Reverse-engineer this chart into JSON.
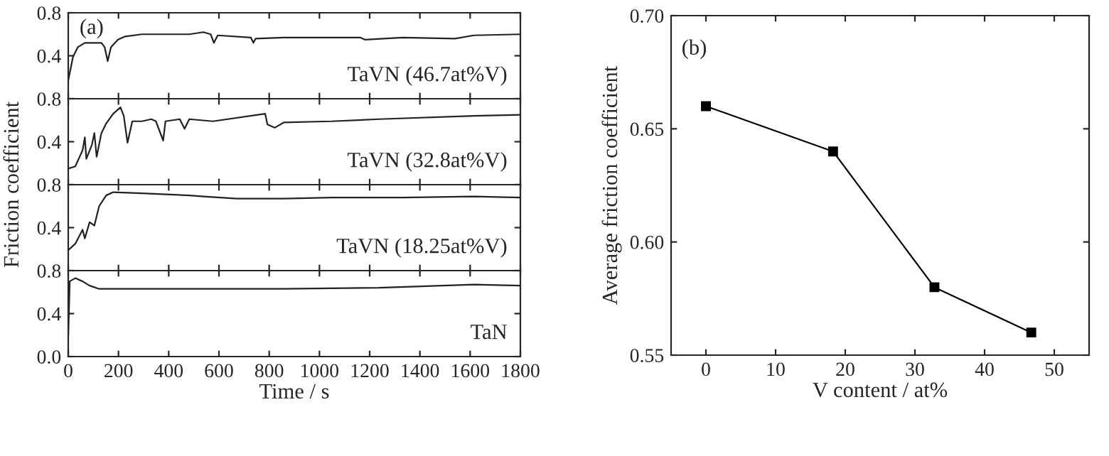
{
  "chart_data": [
    {
      "type": "line",
      "annotations": [
        "(a)"
      ],
      "xlim": [
        0,
        1800
      ],
      "xticks": [
        0,
        200,
        400,
        600,
        800,
        1000,
        1200,
        1400,
        1600,
        1800
      ],
      "ylim": [
        0,
        0.8
      ],
      "yticks": [
        {
          "value": 0,
          "label": null
        },
        {
          "value": 0.4,
          "label": "0.4"
        },
        {
          "value": 0.8,
          "label": "0.8"
        }
      ],
      "tick_labels": "y",
      "legend": "lower right",
      "series": [
        {
          "name": "TaVN (46.7at%V)",
          "color": "#222222",
          "x": [
            0,
            19,
            38,
            66,
            132,
            145,
            157,
            170,
            198,
            227,
            293,
            482,
            538,
            567,
            580,
            595,
            727,
            737,
            746,
            859,
            1162,
            1181,
            1332,
            1540,
            1615,
            1800
          ],
          "values": [
            0.17,
            0.39,
            0.48,
            0.52,
            0.52,
            0.48,
            0.35,
            0.48,
            0.55,
            0.58,
            0.6,
            0.6,
            0.62,
            0.6,
            0.52,
            0.59,
            0.57,
            0.52,
            0.56,
            0.57,
            0.57,
            0.55,
            0.57,
            0.56,
            0.59,
            0.6
          ]
        }
      ]
    },
    {
      "type": "line",
      "ylabel": "Friction coefficient",
      "xlim": [
        0,
        1800
      ],
      "xticks": [
        0,
        200,
        400,
        600,
        800,
        1000,
        1200,
        1400,
        1600,
        1800
      ],
      "ylim": [
        0,
        0.8
      ],
      "yticks": [
        {
          "value": 0,
          "label": null
        },
        {
          "value": 0.4,
          "label": "0.4"
        },
        {
          "value": 0.8,
          "label": "0.8"
        }
      ],
      "tick_labels": "y",
      "legend": "lower right",
      "series": [
        {
          "name": "TaVN (32.8at%V)",
          "color": "#222222",
          "x": [
            0,
            28,
            57,
            66,
            72,
            94,
            104,
            113,
            132,
            151,
            179,
            208,
            221,
            236,
            255,
            293,
            331,
            349,
            378,
            387,
            444,
            463,
            482,
            576,
            784,
            793,
            822,
            859,
            1048,
            1237,
            1615,
            1800
          ],
          "values": [
            0.15,
            0.17,
            0.32,
            0.44,
            0.24,
            0.37,
            0.48,
            0.26,
            0.48,
            0.57,
            0.66,
            0.72,
            0.64,
            0.39,
            0.59,
            0.59,
            0.61,
            0.59,
            0.41,
            0.59,
            0.61,
            0.52,
            0.61,
            0.59,
            0.66,
            0.56,
            0.53,
            0.58,
            0.59,
            0.61,
            0.64,
            0.65
          ]
        }
      ]
    },
    {
      "type": "line",
      "xlim": [
        0,
        1800
      ],
      "xticks": [
        0,
        200,
        400,
        600,
        800,
        1000,
        1200,
        1400,
        1600,
        1800
      ],
      "ylim": [
        0,
        0.8
      ],
      "yticks": [
        {
          "value": 0,
          "label": null
        },
        {
          "value": 0.4,
          "label": "0.4"
        },
        {
          "value": 0.8,
          "label": "0.8"
        }
      ],
      "tick_labels": "y",
      "legend": "lower right",
      "series": [
        {
          "name": "TaVN (18.25at%V)",
          "color": "#222222",
          "x": [
            0,
            28,
            57,
            66,
            85,
            104,
            123,
            151,
            179,
            293,
            482,
            538,
            671,
            859,
            1048,
            1332,
            1615,
            1800
          ],
          "values": [
            0.19,
            0.25,
            0.38,
            0.3,
            0.45,
            0.42,
            0.6,
            0.7,
            0.73,
            0.72,
            0.7,
            0.69,
            0.67,
            0.67,
            0.68,
            0.68,
            0.69,
            0.68
          ]
        }
      ]
    },
    {
      "type": "line",
      "xlabel": "Time / s",
      "xlim": [
        0,
        1800
      ],
      "xticks": [
        0,
        200,
        400,
        600,
        800,
        1000,
        1200,
        1400,
        1600,
        1800
      ],
      "ylim": [
        0,
        0.8
      ],
      "yticks": [
        {
          "value": 0,
          "label": "0.0"
        },
        {
          "value": 0.4,
          "label": "0.4"
        },
        {
          "value": 0.8,
          "label": "0.8"
        }
      ],
      "legend": "lower right",
      "series": [
        {
          "name": "TaN",
          "color": "#222222",
          "x": [
            0,
            6,
            28,
            57,
            85,
            123,
            482,
            859,
            1237,
            1615,
            1800
          ],
          "values": [
            0.19,
            0.7,
            0.73,
            0.7,
            0.66,
            0.63,
            0.63,
            0.63,
            0.64,
            0.67,
            0.66
          ]
        }
      ]
    },
    {
      "type": "line",
      "annotations": [
        "(b)"
      ],
      "xlabel": "V content / at%",
      "ylabel": "Average friction coefficient",
      "xlim": [
        -5,
        55
      ],
      "xticks": [
        0,
        10,
        20,
        30,
        40,
        50
      ],
      "ylim": [
        0.55,
        0.7
      ],
      "yticks": [
        {
          "value": 0.55,
          "label": "0.55"
        },
        {
          "value": 0.6,
          "label": "0.60"
        },
        {
          "value": 0.65,
          "label": "0.65"
        },
        {
          "value": 0.7,
          "label": "0.70"
        }
      ],
      "marker": "square",
      "legend": false,
      "series": [
        {
          "color": "#000000",
          "x": [
            0,
            18.25,
            32.8,
            46.7
          ],
          "values": [
            0.66,
            0.64,
            0.58,
            0.56
          ]
        }
      ]
    }
  ]
}
